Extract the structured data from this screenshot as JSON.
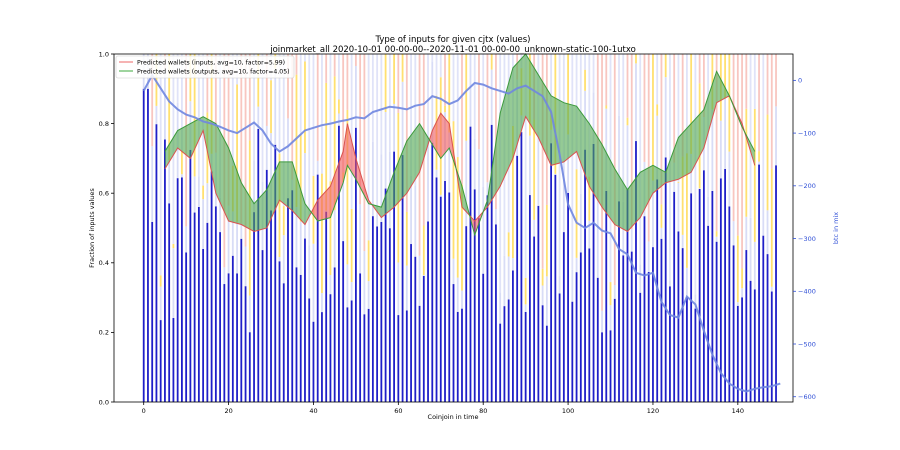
{
  "chart_data": {
    "type": "bar",
    "title": "Type of inputs for given cjtx (values)",
    "subtitle": "joinmarket_all 2020-10-01 00-00-00--2020-11-01 00-00-00_unknown-static-100-1utxo",
    "xlabel": "Coinjoin in time",
    "ylabel": "Fraction of inputs values",
    "y2label": "btc in mix",
    "xlim": [
      -7,
      153
    ],
    "ylim": [
      0,
      1.0
    ],
    "y2lim": [
      -610,
      50
    ],
    "xticks": [
      0,
      20,
      40,
      60,
      80,
      100,
      120,
      140
    ],
    "yticks": [
      0.0,
      0.2,
      0.4,
      0.6,
      0.8,
      1.0
    ],
    "y2ticks": [
      0,
      -100,
      -200,
      -300,
      -400,
      -500,
      -600
    ],
    "grid": false,
    "legend_position": "top-left",
    "colors": {
      "bar_base": "#1f1fc8",
      "bar_mid": "#d8dcf6",
      "bar_yellow": "#ffe070",
      "bar_pink": "#f6b8b0",
      "inputs_line": "#d9534f",
      "outputs_line": "#3c9a3c",
      "fill_red": "#f0595a",
      "fill_green": "#4ea64e",
      "btc_line": "#6f86e0"
    },
    "series": [
      {
        "name": "Predicted wallets (inputs, avg=10, factor=5.99)",
        "x": [
          5,
          8,
          11,
          14,
          17,
          20,
          23,
          26,
          29,
          32,
          35,
          38,
          41,
          44,
          47,
          48,
          50,
          53,
          56,
          59,
          62,
          65,
          68,
          70,
          72,
          75,
          78,
          81,
          84,
          87,
          90,
          93,
          96,
          99,
          102,
          105,
          108,
          111,
          114,
          117,
          120,
          123,
          126,
          129,
          132,
          135,
          138,
          141,
          144
        ],
        "values": [
          0.67,
          0.73,
          0.7,
          0.78,
          0.6,
          0.52,
          0.51,
          0.49,
          0.5,
          0.58,
          0.55,
          0.51,
          0.58,
          0.62,
          0.72,
          0.8,
          0.7,
          0.58,
          0.53,
          0.56,
          0.6,
          0.66,
          0.78,
          0.83,
          0.8,
          0.56,
          0.52,
          0.56,
          0.62,
          0.7,
          0.82,
          0.76,
          0.68,
          0.69,
          0.72,
          0.62,
          0.56,
          0.51,
          0.49,
          0.53,
          0.6,
          0.63,
          0.64,
          0.66,
          0.73,
          0.86,
          0.88,
          0.8,
          0.68
        ]
      },
      {
        "name": "Predicted wallets (outputs, avg=10, factor=4.05)",
        "x": [
          5,
          8,
          11,
          14,
          17,
          20,
          23,
          26,
          29,
          32,
          35,
          38,
          41,
          44,
          47,
          48,
          50,
          53,
          56,
          59,
          62,
          65,
          68,
          70,
          72,
          75,
          78,
          81,
          84,
          87,
          90,
          93,
          96,
          99,
          102,
          105,
          108,
          111,
          114,
          117,
          120,
          123,
          126,
          129,
          132,
          135,
          138,
          141,
          144
        ],
        "values": [
          0.72,
          0.78,
          0.8,
          0.82,
          0.8,
          0.73,
          0.63,
          0.57,
          0.61,
          0.69,
          0.69,
          0.57,
          0.52,
          0.53,
          0.63,
          0.68,
          0.64,
          0.57,
          0.56,
          0.66,
          0.75,
          0.8,
          0.74,
          0.7,
          0.73,
          0.62,
          0.48,
          0.58,
          0.83,
          0.96,
          1.0,
          0.94,
          0.88,
          0.86,
          0.85,
          0.8,
          0.74,
          0.67,
          0.61,
          0.66,
          0.68,
          0.66,
          0.76,
          0.8,
          0.84,
          0.95,
          0.88,
          0.79,
          0.72
        ]
      },
      {
        "name": "",
        "axis": "right",
        "x": [
          0,
          2,
          4,
          6,
          8,
          10,
          12,
          14,
          16,
          18,
          20,
          22,
          24,
          26,
          28,
          30,
          32,
          34,
          36,
          38,
          40,
          42,
          44,
          46,
          48,
          50,
          52,
          54,
          56,
          58,
          60,
          62,
          64,
          66,
          68,
          70,
          72,
          74,
          76,
          78,
          80,
          82,
          84,
          86,
          88,
          90,
          92,
          94,
          96,
          98,
          100,
          102,
          104,
          106,
          108,
          110,
          112,
          114,
          116,
          118,
          120,
          122,
          124,
          126,
          128,
          130,
          132,
          134,
          136,
          138,
          140,
          142,
          144,
          146,
          148,
          150
        ],
        "values": [
          -20,
          10,
          -15,
          -40,
          -55,
          -65,
          -70,
          -78,
          -82,
          -88,
          -95,
          -100,
          -90,
          -80,
          -95,
          -120,
          -135,
          -125,
          -110,
          -95,
          -90,
          -85,
          -82,
          -78,
          -75,
          -70,
          -72,
          -60,
          -55,
          -50,
          -52,
          -55,
          -48,
          -45,
          -30,
          -35,
          -45,
          -38,
          -20,
          -5,
          -8,
          -15,
          -20,
          -25,
          -15,
          -10,
          -20,
          -30,
          -60,
          -140,
          -235,
          -270,
          -280,
          -270,
          -285,
          -290,
          -320,
          -330,
          -365,
          -370,
          -365,
          -420,
          -445,
          -450,
          -410,
          -425,
          -475,
          -520,
          -555,
          -575,
          -585,
          -590,
          -585,
          -582,
          -580,
          -575
        ]
      }
    ]
  }
}
